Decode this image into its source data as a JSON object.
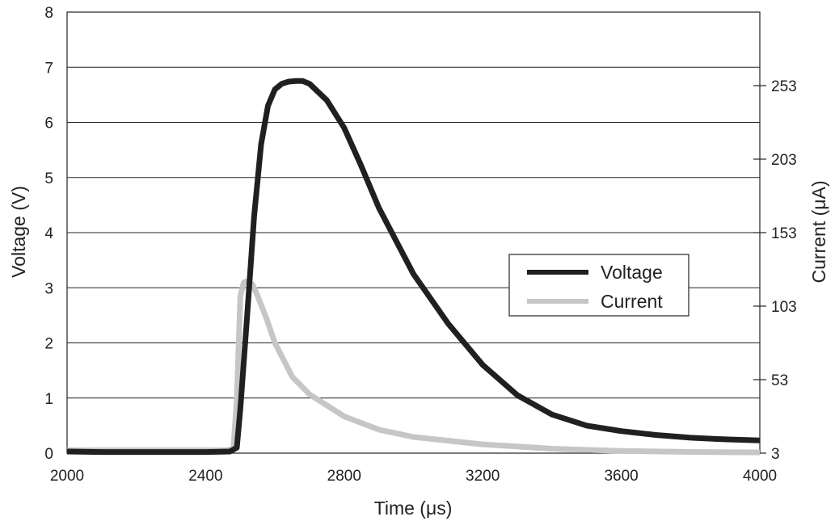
{
  "chart_data": {
    "type": "line",
    "xlabel": "Time (μs)",
    "ylabel": "Voltage (V)",
    "y2label": "Current (μA)",
    "xlim": [
      2000,
      4000
    ],
    "ylim": [
      0,
      8
    ],
    "y2lim": [
      3,
      303
    ],
    "xticks": [
      2000,
      2400,
      2800,
      3200,
      3600,
      4000
    ],
    "yticks": [
      0,
      1,
      2,
      3,
      4,
      5,
      6,
      7,
      8
    ],
    "y2ticks": [
      3,
      53,
      103,
      153,
      203,
      253
    ],
    "grid": true,
    "legend": "right",
    "series": [
      {
        "name": "Voltage",
        "axis": "left",
        "color": "#231f20",
        "x": [
          2000,
          2100,
          2200,
          2300,
          2400,
          2470,
          2490,
          2500,
          2520,
          2540,
          2560,
          2580,
          2600,
          2620,
          2640,
          2660,
          2680,
          2700,
          2750,
          2800,
          2850,
          2900,
          3000,
          3100,
          3200,
          3300,
          3400,
          3500,
          3600,
          3700,
          3800,
          3900,
          4000
        ],
        "values": [
          0.03,
          0.02,
          0.02,
          0.02,
          0.02,
          0.03,
          0.1,
          0.8,
          2.5,
          4.3,
          5.6,
          6.3,
          6.6,
          6.7,
          6.74,
          6.75,
          6.75,
          6.7,
          6.4,
          5.9,
          5.2,
          4.45,
          3.25,
          2.35,
          1.6,
          1.05,
          0.7,
          0.5,
          0.4,
          0.33,
          0.28,
          0.25,
          0.23
        ]
      },
      {
        "name": "Current",
        "axis": "right",
        "color": "#c6c6c6",
        "x": [
          2000,
          2100,
          2200,
          2300,
          2400,
          2460,
          2480,
          2490,
          2500,
          2510,
          2520,
          2535,
          2550,
          2575,
          2600,
          2650,
          2700,
          2800,
          2900,
          3000,
          3200,
          3400,
          3600,
          3800,
          4000
        ],
        "values": [
          5,
          5,
          5,
          5,
          5,
          5,
          6,
          40,
          110,
          119,
          120,
          118,
          110,
          95,
          78,
          55,
          43,
          28,
          19,
          14,
          9,
          6,
          4.5,
          3.8,
          3.5
        ]
      }
    ]
  }
}
